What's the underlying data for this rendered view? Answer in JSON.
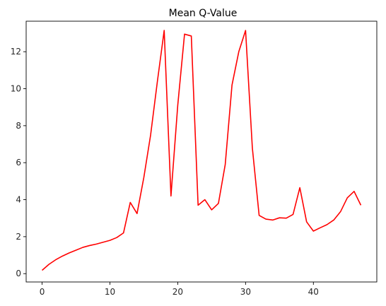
{
  "chart_data": {
    "type": "line",
    "title": "Mean Q-Value",
    "xlabel": "",
    "ylabel": "",
    "xlim": [
      -2.35,
      49.35
    ],
    "ylim": [
      -0.45,
      13.65
    ],
    "x_ticks": [
      0,
      10,
      20,
      30,
      40
    ],
    "y_ticks": [
      0,
      2,
      4,
      6,
      8,
      10,
      12
    ],
    "grid": false,
    "legend": "none",
    "series": [
      {
        "color": "#ff0000",
        "x": [
          0,
          1,
          2,
          3,
          4,
          5,
          6,
          7,
          8,
          9,
          10,
          11,
          12,
          13,
          14,
          15,
          16,
          17,
          18,
          19,
          20,
          21,
          22,
          23,
          24,
          25,
          26,
          27,
          28,
          29,
          30,
          31,
          32,
          33,
          34,
          35,
          36,
          37,
          38,
          39,
          40,
          41,
          42,
          43,
          44,
          45,
          46,
          47
        ],
        "values": [
          0.18,
          0.5,
          0.75,
          0.95,
          1.12,
          1.27,
          1.42,
          1.52,
          1.6,
          1.7,
          1.8,
          1.95,
          2.2,
          3.85,
          3.25,
          5.2,
          7.5,
          10.4,
          13.15,
          4.2,
          9.1,
          12.95,
          12.85,
          3.7,
          4.0,
          3.45,
          3.8,
          5.9,
          10.2,
          12.0,
          13.15,
          6.8,
          3.15,
          2.95,
          2.9,
          3.02,
          3.0,
          3.2,
          4.65,
          2.8,
          2.3,
          2.48,
          2.65,
          2.9,
          3.35,
          4.1,
          4.45,
          3.7
        ]
      }
    ]
  }
}
